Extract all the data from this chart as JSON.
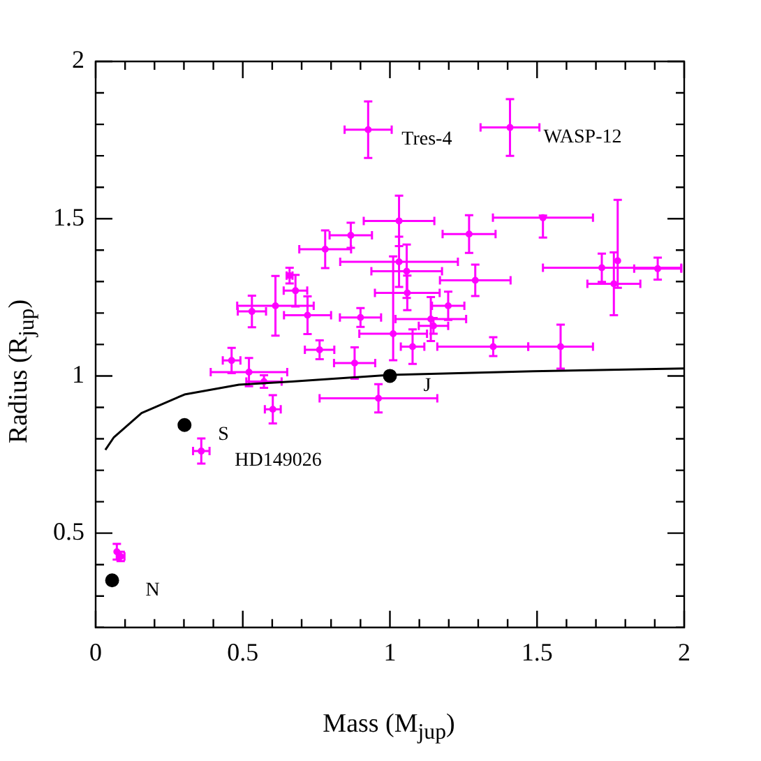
{
  "chart_data": {
    "type": "scatter",
    "xlabel": "Mass (M$_{jup}$)",
    "ylabel": "Radius (R$_{jup}$)",
    "xlim": [
      0,
      2
    ],
    "ylim": [
      0.2,
      2
    ],
    "xticks": [
      0,
      {
        "value": 0.1,
        "label": null
      },
      {
        "value": 0.2,
        "label": null
      },
      {
        "value": 0.3,
        "label": null
      },
      {
        "value": 0.4,
        "label": null
      },
      0.5,
      {
        "value": 0.6,
        "label": null
      },
      {
        "value": 0.7,
        "label": null
      },
      {
        "value": 0.8,
        "label": null
      },
      {
        "value": 0.9,
        "label": null
      },
      1,
      {
        "value": 1.1,
        "label": null
      },
      {
        "value": 1.2,
        "label": null
      },
      {
        "value": 1.3,
        "label": null
      },
      {
        "value": 1.4,
        "label": null
      },
      1.5,
      {
        "value": 1.6,
        "label": null
      },
      {
        "value": 1.7,
        "label": null
      },
      {
        "value": 1.8,
        "label": null
      },
      {
        "value": 1.9,
        "label": null
      },
      2
    ],
    "yticks": [
      {
        "value": 0.2,
        "label": null
      },
      {
        "value": 0.3,
        "label": null
      },
      {
        "value": 0.4,
        "label": null
      },
      0.5,
      {
        "value": 0.6,
        "label": null
      },
      {
        "value": 0.7,
        "label": null
      },
      {
        "value": 0.8,
        "label": null
      },
      {
        "value": 0.9,
        "label": null
      },
      1,
      {
        "value": 1.1,
        "label": null
      },
      {
        "value": 1.2,
        "label": null
      },
      {
        "value": 1.3,
        "label": null
      },
      {
        "value": 1.4,
        "label": null
      },
      1.5,
      {
        "value": 1.6,
        "label": null
      },
      {
        "value": 1.7,
        "label": null
      },
      {
        "value": 1.8,
        "label": null
      },
      {
        "value": 1.9,
        "label": null
      },
      2
    ],
    "grid": false,
    "legend": false,
    "series": [
      {
        "type": "line",
        "color": "#000000",
        "marker": "none",
        "x": [
          0.033,
          0.062,
          0.156,
          0.302,
          0.487,
          0.667,
          1.0,
          1.487,
          2.0
        ],
        "values": [
          0.765,
          0.805,
          0.882,
          0.941,
          0.972,
          0.982,
          1.003,
          1.015,
          1.024
        ]
      },
      {
        "type": "scatter",
        "color": "#ff00ff",
        "marker": "circle",
        "x": [
          0.926,
          1.408,
          1.031,
          0.867,
          0.78,
          1.269,
          1.52,
          0.659,
          0.679,
          0.531,
          0.611,
          0.72,
          0.9,
          0.761,
          0.462,
          0.521,
          0.572,
          0.88,
          0.602,
          0.961,
          1.011,
          1.031,
          1.057,
          1.059,
          1.29,
          1.198,
          1.139,
          1.148,
          1.077,
          1.351,
          1.58,
          1.72,
          1.774,
          1.761,
          1.91,
          0.359,
          0.072,
          0.085
        ],
        "values": [
          1.783,
          1.79,
          1.493,
          1.447,
          1.403,
          1.451,
          1.503,
          1.319,
          1.271,
          1.205,
          1.223,
          1.193,
          1.186,
          1.083,
          1.049,
          1.012,
          0.982,
          1.041,
          0.894,
          0.929,
          1.134,
          1.363,
          1.333,
          1.264,
          1.304,
          1.223,
          1.181,
          1.159,
          1.093,
          1.093,
          1.093,
          1.344,
          1.366,
          1.293,
          1.341,
          0.761,
          0.441,
          0.426
        ],
        "errors": [
          0.09,
          0.09,
          0.08,
          0.04,
          0.06,
          0.06,
          [
            1.44,
            1.51
          ],
          0.025,
          0.05,
          0.05,
          0.095,
          0.06,
          0.03,
          0.03,
          0.04,
          0.045,
          0.02,
          0.05,
          0.045,
          0.045,
          [
            1.05,
            1.38
          ],
          0.08,
          0.085,
          0.055,
          0.05,
          0.045,
          0.07,
          0.025,
          0.055,
          0.03,
          0.07,
          0.045,
          [
            1.28,
            1.56
          ],
          0.1,
          0.035,
          0.04,
          0.025,
          0.015
        ],
        "xerrors": [
          0.08,
          0.1,
          0.12,
          0.072,
          0.088,
          0.09,
          0.17,
          0.01,
          0.04,
          0.048,
          0.13,
          0.08,
          0.07,
          0.05,
          0.03,
          0.13,
          0.06,
          0.07,
          0.027,
          0.2,
          0.115,
          0.2,
          0.12,
          0.11,
          0.12,
          0.055,
          0.12,
          0.05,
          0.04,
          [
            1.161,
            1.47
          ],
          0.11,
          [
            1.52,
            1.99
          ],
          null,
          0.09,
          0.08,
          0.028,
          null,
          0.013
        ]
      },
      {
        "type": "scatter",
        "color": "#000000",
        "marker": "circle",
        "x": [
          0.056,
          0.302,
          1.0
        ],
        "values": [
          0.35,
          0.844,
          1.0
        ]
      }
    ],
    "annotations": [
      {
        "text": "Tres-4",
        "x": 0.926,
        "y": 1.783
      },
      {
        "text": "WASP-12",
        "x": 1.408,
        "y": 1.79
      },
      {
        "text": "HD149026",
        "x": 0.359,
        "y": 0.761
      },
      {
        "text": "N",
        "x": 0.056,
        "y": 0.35
      },
      {
        "text": "S",
        "x": 0.302,
        "y": 0.844
      },
      {
        "text": "J",
        "x": 1.0,
        "y": 1.0
      }
    ]
  }
}
